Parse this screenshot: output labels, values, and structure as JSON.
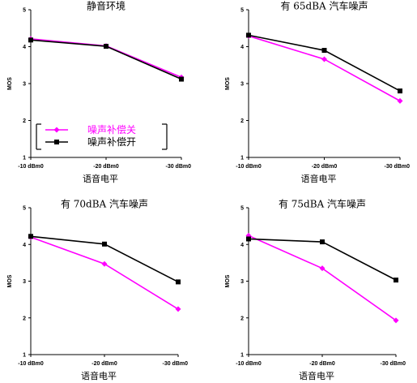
{
  "colors": {
    "off": "#ff00ff",
    "on": "#000000",
    "axis": "#000000"
  },
  "chart_data": [
    {
      "type": "line",
      "title": "静音环境",
      "xlabel": "语音电平",
      "ylabel": "MOS",
      "categories": [
        "-10 dBm0",
        "-20 dBm0",
        "-30 dBm0"
      ],
      "yticks": [
        "1",
        "2",
        "3",
        "4",
        "5"
      ],
      "ylim": [
        1,
        5
      ],
      "legend": {
        "placement": "bottom-left",
        "entries": [
          "噪声补偿关",
          "噪声补偿开"
        ]
      },
      "series": [
        {
          "name": "噪声补偿关",
          "values": [
            4.21,
            4.02,
            3.17
          ]
        },
        {
          "name": "噪声补偿开",
          "values": [
            4.18,
            4.01,
            3.12
          ]
        }
      ]
    },
    {
      "type": "line",
      "title": "有 65dBA 汽车噪声",
      "xlabel": "语音电平",
      "ylabel": "MOS",
      "categories": [
        "-10 dBm0",
        "-20 dBm0",
        "-30 dBm0"
      ],
      "yticks": [
        "1",
        "2",
        "3",
        "4",
        "5"
      ],
      "ylim": [
        1,
        5
      ],
      "series": [
        {
          "name": "噪声补偿关",
          "values": [
            4.29,
            3.66,
            2.53
          ]
        },
        {
          "name": "噪声补偿开",
          "values": [
            4.31,
            3.9,
            2.8
          ]
        }
      ]
    },
    {
      "type": "line",
      "title": "有 70dBA 汽车噪声",
      "xlabel": "语音电平",
      "ylabel": "MOS",
      "categories": [
        "-10 dBm0",
        "-20 dBm0",
        "-30 dBm0"
      ],
      "yticks": [
        "1",
        "2",
        "3",
        "4",
        "5"
      ],
      "ylim": [
        1,
        5
      ],
      "series": [
        {
          "name": "噪声补偿关",
          "values": [
            4.2,
            3.47,
            2.24
          ]
        },
        {
          "name": "噪声补偿开",
          "values": [
            4.22,
            4.01,
            2.98
          ]
        }
      ]
    },
    {
      "type": "line",
      "title": "有 75dBA 汽车噪声",
      "xlabel": "语音电平",
      "ylabel": "MOS",
      "categories": [
        "-10 dBm0",
        "-20 dBm0",
        "-30 dBm0"
      ],
      "yticks": [
        "1",
        "2",
        "3",
        "4",
        "5"
      ],
      "ylim": [
        1,
        5
      ],
      "series": [
        {
          "name": "噪声补偿关",
          "values": [
            4.24,
            3.35,
            1.93
          ]
        },
        {
          "name": "噪声补偿开",
          "values": [
            4.15,
            4.07,
            3.03
          ]
        }
      ]
    }
  ]
}
